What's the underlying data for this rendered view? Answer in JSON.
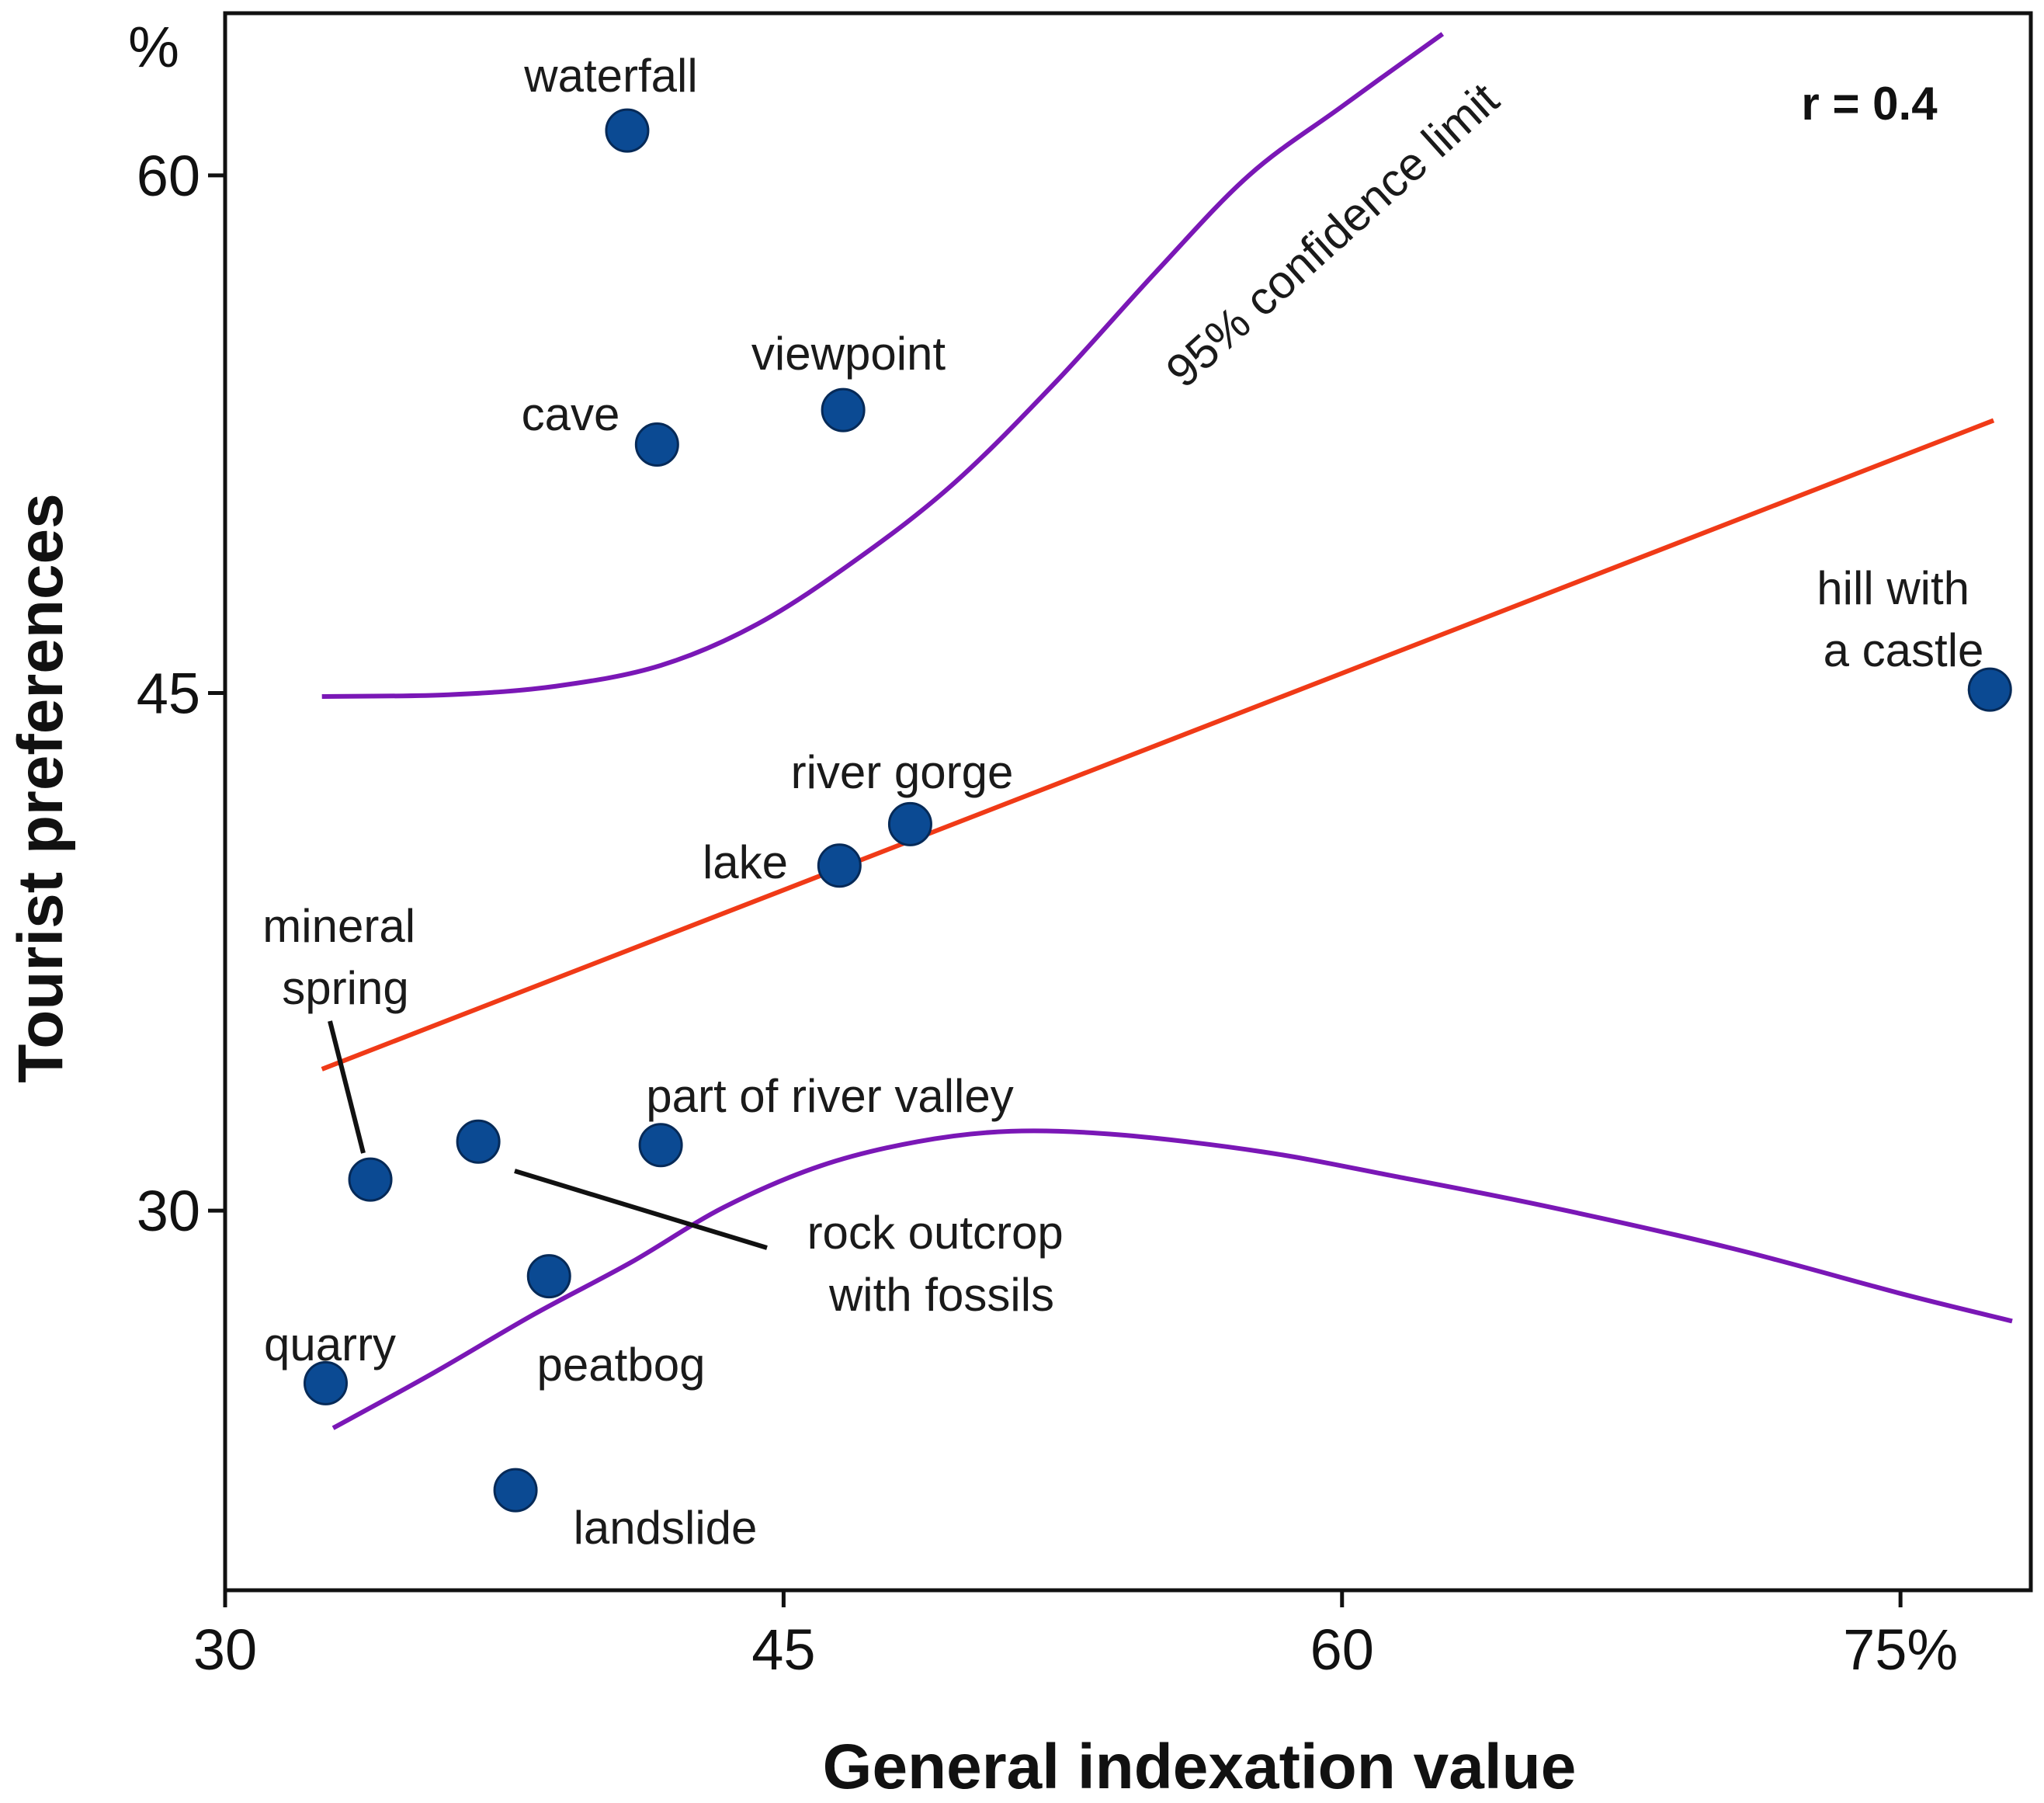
{
  "chart_data": {
    "type": "scatter",
    "title": "",
    "xlabel": "General indexation value",
    "ylabel": "Tourist preferences",
    "y_unit_label": "%",
    "xlim": [
      30,
      78.5
    ],
    "ylim": [
      19,
      64.7
    ],
    "x_ticks": [
      {
        "value": 30,
        "label": "30"
      },
      {
        "value": 45,
        "label": "45"
      },
      {
        "value": 60,
        "label": "60"
      },
      {
        "value": 75,
        "label": "75%"
      }
    ],
    "y_ticks": [
      {
        "value": 30,
        "label": "30"
      },
      {
        "value": 45,
        "label": "45"
      },
      {
        "value": 60,
        "label": "60"
      }
    ],
    "grid": false,
    "annotation": "r = 0.4",
    "confidence_label": "95% confidence limit",
    "colors": {
      "points": "#0b4a93",
      "regression": "#f03a17",
      "confidence": "#7a17b6",
      "axis": "#111111"
    },
    "series": [
      {
        "name": "sites",
        "points": [
          {
            "label": "waterfall",
            "x": 40.8,
            "y": 61.3
          },
          {
            "label": "cave",
            "x": 41.6,
            "y": 52.2
          },
          {
            "label": "viewpoint",
            "x": 46.6,
            "y": 53.2
          },
          {
            "label": "hill with a castle",
            "x": 77.4,
            "y": 45.1
          },
          {
            "label": "river gorge",
            "x": 48.4,
            "y": 41.2
          },
          {
            "label": "lake",
            "x": 46.5,
            "y": 40.0
          },
          {
            "label": "mineral spring",
            "x": 33.9,
            "y": 30.9
          },
          {
            "label": "rock outcrop with fossils",
            "x": 36.8,
            "y": 32.0
          },
          {
            "label": "part of river valley",
            "x": 41.7,
            "y": 31.9
          },
          {
            "label": "peatbog",
            "x": 38.7,
            "y": 28.1
          },
          {
            "label": "quarry",
            "x": 32.7,
            "y": 25.0
          },
          {
            "label": "landslide",
            "x": 37.8,
            "y": 21.9
          }
        ]
      },
      {
        "name": "regression",
        "points": [
          {
            "x": 32.6,
            "y": 34.1
          },
          {
            "x": 77.5,
            "y": 52.9
          }
        ]
      },
      {
        "name": "upper confidence limit",
        "points": [
          {
            "x": 32.6,
            "y": 44.9
          },
          {
            "x": 36.0,
            "y": 44.95
          },
          {
            "x": 38.9,
            "y": 45.2
          },
          {
            "x": 41.7,
            "y": 45.8
          },
          {
            "x": 44.3,
            "y": 47.0
          },
          {
            "x": 47.0,
            "y": 48.9
          },
          {
            "x": 49.6,
            "y": 51.1
          },
          {
            "x": 52.3,
            "y": 54.0
          },
          {
            "x": 55.0,
            "y": 57.2
          },
          {
            "x": 57.5,
            "y": 60.0
          },
          {
            "x": 60.0,
            "y": 62.0
          },
          {
            "x": 62.7,
            "y": 64.1
          }
        ]
      },
      {
        "name": "lower confidence limit",
        "points": [
          {
            "x": 32.9,
            "y": 23.7
          },
          {
            "x": 35.6,
            "y": 25.3
          },
          {
            "x": 38.3,
            "y": 27.0
          },
          {
            "x": 40.9,
            "y": 28.5
          },
          {
            "x": 43.4,
            "y": 30.1
          },
          {
            "x": 46.0,
            "y": 31.3
          },
          {
            "x": 48.6,
            "y": 32.0
          },
          {
            "x": 51.1,
            "y": 32.3
          },
          {
            "x": 54.0,
            "y": 32.2
          },
          {
            "x": 57.9,
            "y": 31.7
          },
          {
            "x": 61.4,
            "y": 31.0
          },
          {
            "x": 65.6,
            "y": 30.1
          },
          {
            "x": 70.5,
            "y": 28.9
          },
          {
            "x": 75.0,
            "y": 27.6
          },
          {
            "x": 78.0,
            "y": 26.8
          }
        ]
      }
    ]
  }
}
